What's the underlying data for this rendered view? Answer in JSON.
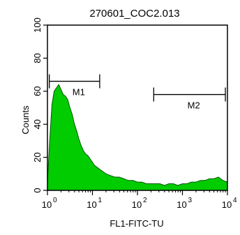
{
  "chart_data": {
    "type": "area",
    "title": "270601_COC2.013",
    "xlabel": "FL1-FITC-TU",
    "ylabel": "Counts",
    "x_scale": "log",
    "xlim": [
      1,
      10000
    ],
    "ylim": [
      0,
      100
    ],
    "x_ticks": [
      {
        "value": 1,
        "base": "10",
        "exp": "0"
      },
      {
        "value": 10,
        "base": "10",
        "exp": "1"
      },
      {
        "value": 100,
        "base": "10",
        "exp": "2"
      },
      {
        "value": 1000,
        "base": "10",
        "exp": "3"
      },
      {
        "value": 10000,
        "base": "10",
        "exp": "4"
      }
    ],
    "y_ticks": [
      "0",
      "20",
      "40",
      "60",
      "80",
      "100"
    ],
    "fill_color": "#00cc00",
    "series": [
      {
        "x": [
          1,
          1.12,
          1.26,
          1.41,
          1.58,
          1.78,
          2,
          2.24,
          2.51,
          2.82,
          3.16,
          3.55,
          3.98,
          4.47,
          5.01,
          5.62,
          6.31,
          7.08,
          7.94,
          8.91,
          10,
          11.2,
          12.6,
          14.1,
          15.8,
          17.8,
          20,
          25,
          31.6,
          39.8,
          50,
          63,
          79.4,
          100,
          126,
          158,
          200,
          251,
          316,
          398,
          501,
          631,
          794,
          1000,
          1260,
          1580,
          2000,
          2510,
          3160,
          3980,
          5010,
          6310,
          7940,
          10000
        ],
        "y": [
          5,
          30,
          52,
          60,
          62,
          64,
          61,
          58,
          57,
          55,
          50,
          46,
          40,
          36,
          31,
          27,
          24,
          22,
          21,
          19,
          17,
          15,
          14,
          13,
          12,
          11,
          10,
          9,
          8,
          8,
          7,
          6,
          6,
          5,
          5,
          4,
          4,
          4,
          4,
          3,
          4,
          4,
          3,
          4,
          4,
          5,
          5,
          6,
          6,
          7,
          7,
          8,
          6,
          5
        ]
      }
    ],
    "markers": [
      {
        "label": "M1",
        "x_start": 1.1,
        "x_end": 14.5,
        "y": 66
      },
      {
        "label": "M2",
        "x_start": 230,
        "x_end": 9000,
        "y": 58
      }
    ]
  }
}
